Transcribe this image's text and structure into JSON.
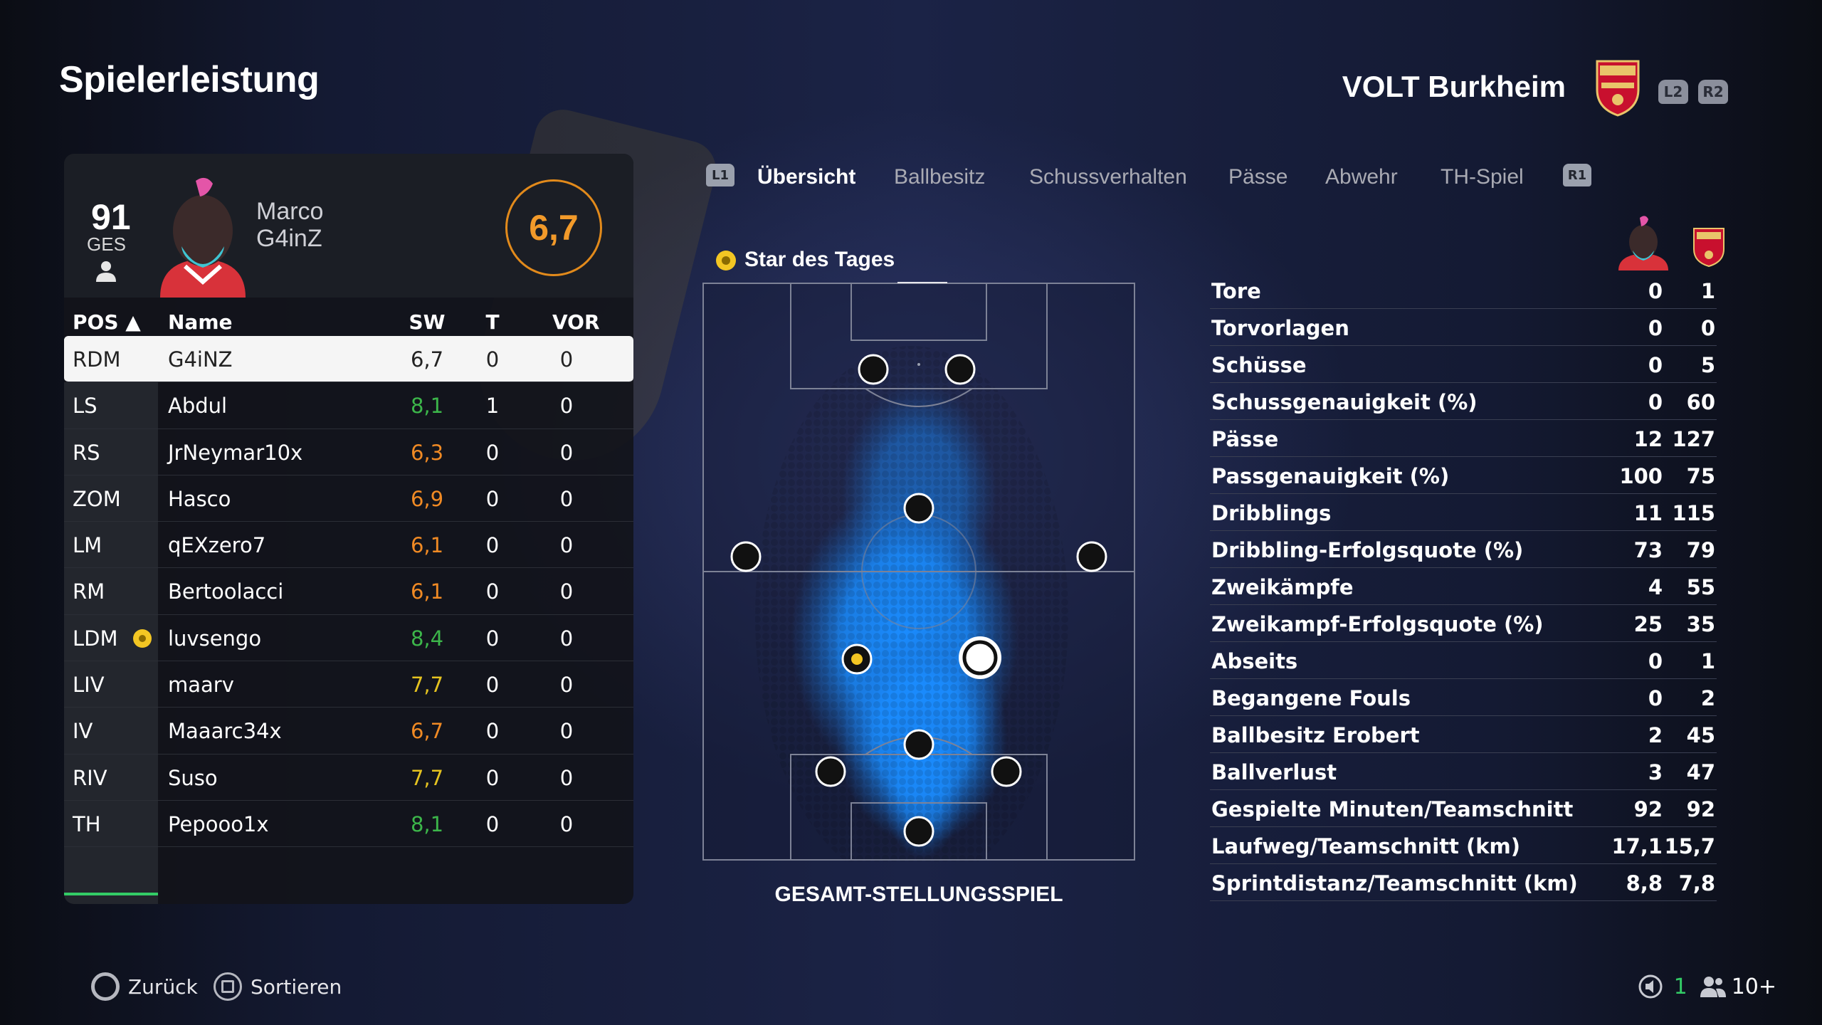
{
  "header": {
    "title": "Spielerleistung",
    "team_name": "VOLT Burkheim",
    "l2_label": "L2",
    "r2_label": "R2"
  },
  "player": {
    "ges_value": "91",
    "ges_label": "GES",
    "first_name": "Marco",
    "last_name": "G4inZ",
    "rating": "6,7"
  },
  "table": {
    "headers": {
      "pos": "POS ▲",
      "name": "Name",
      "sw": "SW",
      "t": "T",
      "vor": "VOR"
    },
    "rows": [
      {
        "pos": "RDM",
        "name": "G4iNZ",
        "sw": "6,7",
        "t": "0",
        "vor": "0",
        "color": "#222222",
        "selected": true,
        "star": false
      },
      {
        "pos": "LS",
        "name": "Abdul",
        "sw": "8,1",
        "t": "1",
        "vor": "0",
        "color": "#3cb64a",
        "selected": false,
        "star": false
      },
      {
        "pos": "RS",
        "name": "JrNeymar10x",
        "sw": "6,3",
        "t": "0",
        "vor": "0",
        "color": "#f08a24",
        "selected": false,
        "star": false
      },
      {
        "pos": "ZOM",
        "name": "Hasco",
        "sw": "6,9",
        "t": "0",
        "vor": "0",
        "color": "#f08a24",
        "selected": false,
        "star": false
      },
      {
        "pos": "LM",
        "name": "qEXzero7",
        "sw": "6,1",
        "t": "0",
        "vor": "0",
        "color": "#f08a24",
        "selected": false,
        "star": false
      },
      {
        "pos": "RM",
        "name": "Bertoolacci",
        "sw": "6,1",
        "t": "0",
        "vor": "0",
        "color": "#f08a24",
        "selected": false,
        "star": false
      },
      {
        "pos": "LDM",
        "name": "luvsengo",
        "sw": "8,4",
        "t": "0",
        "vor": "0",
        "color": "#3cb64a",
        "selected": false,
        "star": true
      },
      {
        "pos": "LIV",
        "name": "maarv",
        "sw": "7,7",
        "t": "0",
        "vor": "0",
        "color": "#e5c320",
        "selected": false,
        "star": false
      },
      {
        "pos": "IV",
        "name": "Maaarc34x",
        "sw": "6,7",
        "t": "0",
        "vor": "0",
        "color": "#f08a24",
        "selected": false,
        "star": false
      },
      {
        "pos": "RIV",
        "name": "Suso",
        "sw": "7,7",
        "t": "0",
        "vor": "0",
        "color": "#e5c320",
        "selected": false,
        "star": false
      },
      {
        "pos": "TH",
        "name": "Pepooo1x",
        "sw": "8,1",
        "t": "0",
        "vor": "0",
        "color": "#3cb64a",
        "selected": false,
        "star": false
      }
    ]
  },
  "tabs": {
    "l1": "L1",
    "r1": "R1",
    "items": [
      "Übersicht",
      "Ballbesitz",
      "Schussverhalten",
      "Pässe",
      "Abwehr",
      "TH-Spiel"
    ],
    "active": 0
  },
  "pitch": {
    "star_label": "Star des Tages",
    "caption": "GESAMT-STELLUNGSSPIEL"
  },
  "stats": [
    {
      "label": "Tore",
      "player": "0",
      "team": "1"
    },
    {
      "label": "Torvorlagen",
      "player": "0",
      "team": "0"
    },
    {
      "label": "Schüsse",
      "player": "0",
      "team": "5"
    },
    {
      "label": "Schussgenauigkeit (%)",
      "player": "0",
      "team": "60"
    },
    {
      "label": "Pässe",
      "player": "12",
      "team": "127"
    },
    {
      "label": "Passgenauigkeit (%)",
      "player": "100",
      "team": "75"
    },
    {
      "label": "Dribblings",
      "player": "11",
      "team": "115"
    },
    {
      "label": "Dribbling-Erfolgsquote (%)",
      "player": "73",
      "team": "79"
    },
    {
      "label": "Zweikämpfe",
      "player": "4",
      "team": "55"
    },
    {
      "label": "Zweikampf-Erfolgsquote (%)",
      "player": "25",
      "team": "35"
    },
    {
      "label": "Abseits",
      "player": "0",
      "team": "1"
    },
    {
      "label": "Begangene Fouls",
      "player": "0",
      "team": "2"
    },
    {
      "label": "Ballbesitz Erobert",
      "player": "2",
      "team": "45"
    },
    {
      "label": "Ballverlust",
      "player": "3",
      "team": "47"
    },
    {
      "label": "Gespielte Minuten/Teamschnitt",
      "player": "92",
      "team": "92"
    },
    {
      "label": "Laufweg/Teamschnitt (km)",
      "player": "17,1",
      "team": "15,7"
    },
    {
      "label": "Sprintdistanz/Teamschnitt (km)",
      "player": "8,8",
      "team": "7,8"
    }
  ],
  "footer": {
    "back_label": "Zurück",
    "sort_label": "Sortieren",
    "mic_count": "1",
    "players_count": "10+"
  },
  "colors": {
    "accent_green": "#33cc66",
    "rating_orange": "#f29a2a",
    "heat_blue": "#1a8cff"
  }
}
